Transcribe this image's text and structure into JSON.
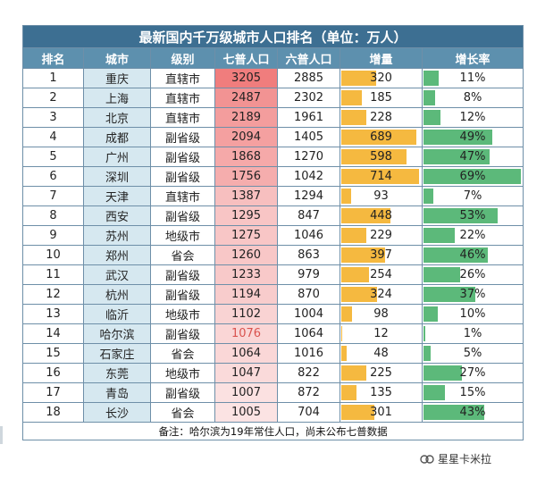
{
  "title": "最新国内千万级城市人口排名（单位：万人）",
  "headers": [
    "排名",
    "城市",
    "级别",
    "七普人口",
    "六普人口",
    "增量",
    "增长率"
  ],
  "rows": [
    {
      "rank": "1",
      "city": "重庆",
      "level": "直辖市",
      "census7": "3205",
      "census6": "2885",
      "increase": "320",
      "rate": "11%",
      "rate_value": 11
    },
    {
      "rank": "2",
      "city": "上海",
      "level": "直辖市",
      "census7": "2487",
      "census6": "2302",
      "increase": "185",
      "rate": "8%",
      "rate_value": 8
    },
    {
      "rank": "3",
      "city": "北京",
      "level": "直辖市",
      "census7": "2189",
      "census6": "1961",
      "increase": "228",
      "rate": "12%",
      "rate_value": 12
    },
    {
      "rank": "4",
      "city": "成都",
      "level": "副省级",
      "census7": "2094",
      "census6": "1405",
      "increase": "689",
      "rate": "49%",
      "rate_value": 49
    },
    {
      "rank": "5",
      "city": "广州",
      "level": "副省级",
      "census7": "1868",
      "census6": "1270",
      "increase": "598",
      "rate": "47%",
      "rate_value": 47
    },
    {
      "rank": "6",
      "city": "深圳",
      "level": "副省级",
      "census7": "1756",
      "census6": "1042",
      "increase": "714",
      "rate": "69%",
      "rate_value": 69
    },
    {
      "rank": "7",
      "city": "天津",
      "level": "直辖市",
      "census7": "1387",
      "census6": "1294",
      "increase": "93",
      "rate": "7%",
      "rate_value": 7
    },
    {
      "rank": "8",
      "city": "西安",
      "level": "副省级",
      "census7": "1295",
      "census6": "847",
      "increase": "448",
      "rate": "53%",
      "rate_value": 53
    },
    {
      "rank": "9",
      "city": "苏州",
      "level": "地级市",
      "census7": "1275",
      "census6": "1046",
      "increase": "229",
      "rate": "22%",
      "rate_value": 22
    },
    {
      "rank": "10",
      "city": "郑州",
      "level": "省会",
      "census7": "1260",
      "census6": "863",
      "increase": "397",
      "rate": "46%",
      "rate_value": 46
    },
    {
      "rank": "11",
      "city": "武汉",
      "level": "副省级",
      "census7": "1233",
      "census6": "979",
      "increase": "254",
      "rate": "26%",
      "rate_value": 26
    },
    {
      "rank": "12",
      "city": "杭州",
      "level": "副省级",
      "census7": "1194",
      "census6": "870",
      "increase": "324",
      "rate": "37%",
      "rate_value": 37
    },
    {
      "rank": "13",
      "city": "临沂",
      "level": "地级市",
      "census7": "1102",
      "census6": "1004",
      "increase": "98",
      "rate": "10%",
      "rate_value": 10
    },
    {
      "rank": "14",
      "city": "哈尔滨",
      "level": "副省级",
      "census7": "1076",
      "census6": "1064",
      "increase": "12",
      "rate": "1%",
      "rate_value": 1
    },
    {
      "rank": "15",
      "city": "石家庄",
      "level": "省会",
      "census7": "1064",
      "census6": "1016",
      "increase": "48",
      "rate": "5%",
      "rate_value": 5
    },
    {
      "rank": "16",
      "city": "东莞",
      "level": "地级市",
      "census7": "1047",
      "census6": "822",
      "increase": "225",
      "rate": "27%",
      "rate_value": 27
    },
    {
      "rank": "17",
      "city": "青岛",
      "level": "副省级",
      "census7": "1007",
      "census6": "872",
      "increase": "135",
      "rate": "15%",
      "rate_value": 15
    },
    {
      "rank": "18",
      "city": "长沙",
      "level": "省会",
      "census7": "1005",
      "census6": "704",
      "increase": "301",
      "rate": "43%",
      "rate_value": 43
    }
  ],
  "footnote": "备注：哈尔滨为19年常住人口，尚未公布七普数据",
  "watermark": "星星卡米拉",
  "watermark_icon": "wechat-official-account-icon",
  "colors": {
    "title_bg": "#3d6f92",
    "header_bg": "#5d90ae",
    "city_bg": "#d6e8f0",
    "increase_bar": "#f5b940",
    "rate_bar": "#5cb97a",
    "census7_scale_low": "#fbe3e3",
    "census7_scale_high": "#f07d7d",
    "census7_text_highlight": "#d9534f"
  }
}
